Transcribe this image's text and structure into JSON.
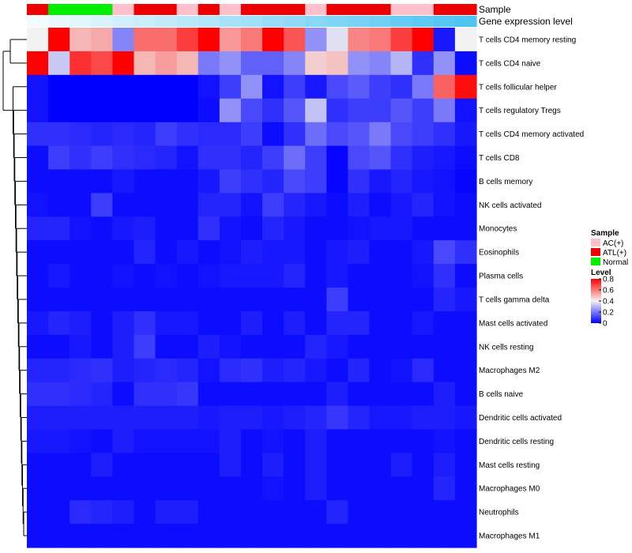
{
  "chart_data": {
    "type": "heatmap",
    "title": "",
    "annotation_labels": [
      "Sample",
      "Gene expression level"
    ],
    "annotation_row_gradient": [
      "#f2fbfe",
      "#4ec4f3"
    ],
    "sample_groups": [
      "ATL(+)",
      "Normal",
      "Normal",
      "Normal",
      "AC(+)",
      "ATL(+)",
      "ATL(+)",
      "AC(+)",
      "ATL(+)",
      "AC(+)",
      "ATL(+)",
      "ATL(+)",
      "ATL(+)",
      "AC(+)",
      "ATL(+)",
      "ATL(+)",
      "ATL(+)",
      "AC(+)",
      "AC(+)",
      "ATL(+)",
      "ATL(+)"
    ],
    "rows": [
      "T cells CD4 memory resting",
      "T cells CD4 naive",
      "T cells follicular helper",
      "T cells regulatory  Tregs",
      "T cells CD4 memory activated",
      "T cells CD8",
      "B cells memory",
      "NK cells activated",
      "Monocytes",
      "Eosinophils",
      "Plasma cells",
      "T cells gamma delta",
      "Mast cells activated",
      "NK cells resting",
      "Macrophages M2",
      "B cells naive",
      "Dendritic cells activated",
      "Dendritic cells resting",
      "Mast cells resting",
      "Macrophages M0",
      "Neutrophils",
      "Macrophages M1"
    ],
    "values": [
      [
        0.4,
        0.8,
        0.5,
        0.52,
        0.22,
        0.62,
        0.62,
        0.7,
        0.8,
        0.55,
        0.6,
        0.8,
        0.66,
        0.24,
        0.37,
        0.58,
        0.6,
        0.7,
        0.8,
        0.04,
        0.4
      ],
      [
        0.8,
        0.33,
        0.72,
        0.68,
        0.8,
        0.5,
        0.54,
        0.5,
        0.2,
        0.24,
        0.16,
        0.16,
        0.22,
        0.46,
        0.48,
        0.24,
        0.22,
        0.3,
        0.08,
        0.24,
        0.02
      ],
      [
        0.03,
        0.0,
        0.0,
        0.0,
        0.0,
        0.0,
        0.0,
        0.0,
        0.03,
        0.1,
        0.24,
        0.03,
        0.1,
        0.04,
        0.12,
        0.15,
        0.1,
        0.08,
        0.2,
        0.64,
        0.78
      ],
      [
        0.03,
        0.0,
        0.0,
        0.0,
        0.0,
        0.0,
        0.0,
        0.0,
        0.02,
        0.24,
        0.12,
        0.08,
        0.14,
        0.32,
        0.08,
        0.1,
        0.1,
        0.14,
        0.1,
        0.2,
        0.03
      ],
      [
        0.08,
        0.08,
        0.07,
        0.06,
        0.07,
        0.06,
        0.1,
        0.08,
        0.07,
        0.07,
        0.1,
        0.02,
        0.08,
        0.18,
        0.12,
        0.14,
        0.2,
        0.12,
        0.1,
        0.08,
        0.04
      ],
      [
        0.02,
        0.1,
        0.08,
        0.1,
        0.08,
        0.07,
        0.06,
        0.03,
        0.08,
        0.08,
        0.06,
        0.1,
        0.18,
        0.1,
        0.01,
        0.12,
        0.14,
        0.08,
        0.05,
        0.04,
        0.02
      ],
      [
        0.02,
        0.02,
        0.02,
        0.02,
        0.04,
        0.02,
        0.02,
        0.02,
        0.04,
        0.1,
        0.08,
        0.06,
        0.12,
        0.1,
        0.01,
        0.08,
        0.04,
        0.06,
        0.04,
        0.03,
        0.01
      ],
      [
        0.03,
        0.02,
        0.02,
        0.1,
        0.02,
        0.02,
        0.02,
        0.02,
        0.06,
        0.06,
        0.03,
        0.1,
        0.06,
        0.04,
        0.02,
        0.05,
        0.02,
        0.04,
        0.06,
        0.03,
        0.02
      ],
      [
        0.06,
        0.06,
        0.03,
        0.02,
        0.04,
        0.05,
        0.02,
        0.02,
        0.08,
        0.03,
        0.02,
        0.06,
        0.04,
        0.02,
        0.02,
        0.03,
        0.04,
        0.04,
        0.02,
        0.02,
        0.02
      ],
      [
        0.02,
        0.02,
        0.02,
        0.02,
        0.02,
        0.06,
        0.02,
        0.04,
        0.02,
        0.03,
        0.05,
        0.04,
        0.04,
        0.02,
        0.04,
        0.05,
        0.02,
        0.02,
        0.04,
        0.12,
        0.08
      ],
      [
        0.02,
        0.04,
        0.02,
        0.02,
        0.03,
        0.02,
        0.03,
        0.02,
        0.03,
        0.04,
        0.04,
        0.04,
        0.06,
        0.02,
        0.04,
        0.02,
        0.02,
        0.02,
        0.03,
        0.08,
        0.02
      ],
      [
        0.02,
        0.02,
        0.02,
        0.02,
        0.02,
        0.02,
        0.02,
        0.02,
        0.02,
        0.02,
        0.02,
        0.02,
        0.02,
        0.02,
        0.1,
        0.02,
        0.02,
        0.02,
        0.02,
        0.06,
        0.04
      ],
      [
        0.04,
        0.06,
        0.05,
        0.02,
        0.05,
        0.08,
        0.04,
        0.04,
        0.02,
        0.02,
        0.05,
        0.02,
        0.05,
        0.02,
        0.06,
        0.06,
        0.02,
        0.02,
        0.04,
        0.02,
        0.02
      ],
      [
        0.02,
        0.02,
        0.04,
        0.02,
        0.05,
        0.1,
        0.02,
        0.02,
        0.05,
        0.03,
        0.02,
        0.02,
        0.02,
        0.06,
        0.04,
        0.02,
        0.02,
        0.02,
        0.02,
        0.02,
        0.02
      ],
      [
        0.06,
        0.06,
        0.07,
        0.08,
        0.05,
        0.06,
        0.07,
        0.06,
        0.03,
        0.07,
        0.08,
        0.05,
        0.06,
        0.04,
        0.02,
        0.06,
        0.02,
        0.03,
        0.07,
        0.02,
        0.02
      ],
      [
        0.08,
        0.08,
        0.07,
        0.06,
        0.02,
        0.08,
        0.08,
        0.09,
        0.02,
        0.02,
        0.02,
        0.02,
        0.02,
        0.02,
        0.05,
        0.02,
        0.02,
        0.02,
        0.02,
        0.05,
        0.02
      ],
      [
        0.05,
        0.05,
        0.05,
        0.05,
        0.05,
        0.05,
        0.05,
        0.05,
        0.04,
        0.05,
        0.05,
        0.04,
        0.05,
        0.06,
        0.09,
        0.06,
        0.04,
        0.04,
        0.05,
        0.05,
        0.04
      ],
      [
        0.04,
        0.04,
        0.03,
        0.02,
        0.05,
        0.03,
        0.03,
        0.03,
        0.03,
        0.05,
        0.02,
        0.03,
        0.02,
        0.05,
        0.02,
        0.02,
        0.02,
        0.02,
        0.02,
        0.03,
        0.02
      ],
      [
        0.02,
        0.02,
        0.02,
        0.05,
        0.02,
        0.02,
        0.02,
        0.02,
        0.02,
        0.05,
        0.02,
        0.05,
        0.02,
        0.05,
        0.02,
        0.02,
        0.02,
        0.05,
        0.02,
        0.05,
        0.02
      ],
      [
        0.02,
        0.02,
        0.02,
        0.02,
        0.02,
        0.02,
        0.02,
        0.02,
        0.02,
        0.02,
        0.02,
        0.03,
        0.02,
        0.05,
        0.02,
        0.02,
        0.02,
        0.02,
        0.02,
        0.06,
        0.02
      ],
      [
        0.02,
        0.02,
        0.07,
        0.06,
        0.05,
        0.02,
        0.05,
        0.05,
        0.02,
        0.02,
        0.02,
        0.02,
        0.02,
        0.02,
        0.06,
        0.02,
        0.02,
        0.02,
        0.02,
        0.02,
        0.02
      ],
      [
        0.02,
        0.02,
        0.02,
        0.02,
        0.02,
        0.02,
        0.02,
        0.02,
        0.02,
        0.02,
        0.02,
        0.02,
        0.02,
        0.02,
        0.02,
        0.02,
        0.02,
        0.02,
        0.02,
        0.02,
        0.02
      ]
    ],
    "legend": {
      "sample": {
        "title": "Sample",
        "entries": [
          {
            "label": "AC(+)",
            "color": "#ffc0cb"
          },
          {
            "label": "ATL(+)",
            "color": "#ee0000"
          },
          {
            "label": "Normal",
            "color": "#00ee00"
          }
        ]
      },
      "level": {
        "title": "Level",
        "ticks": [
          0.8,
          0.6,
          0.4,
          0.2,
          0
        ],
        "tick_labels": [
          "0.8",
          "0.6",
          "0.4",
          "0.2",
          "0"
        ],
        "range": [
          0,
          0.8
        ],
        "gradient": [
          "#0000ff",
          "#f2f2f2",
          "#ff0000"
        ]
      }
    }
  }
}
